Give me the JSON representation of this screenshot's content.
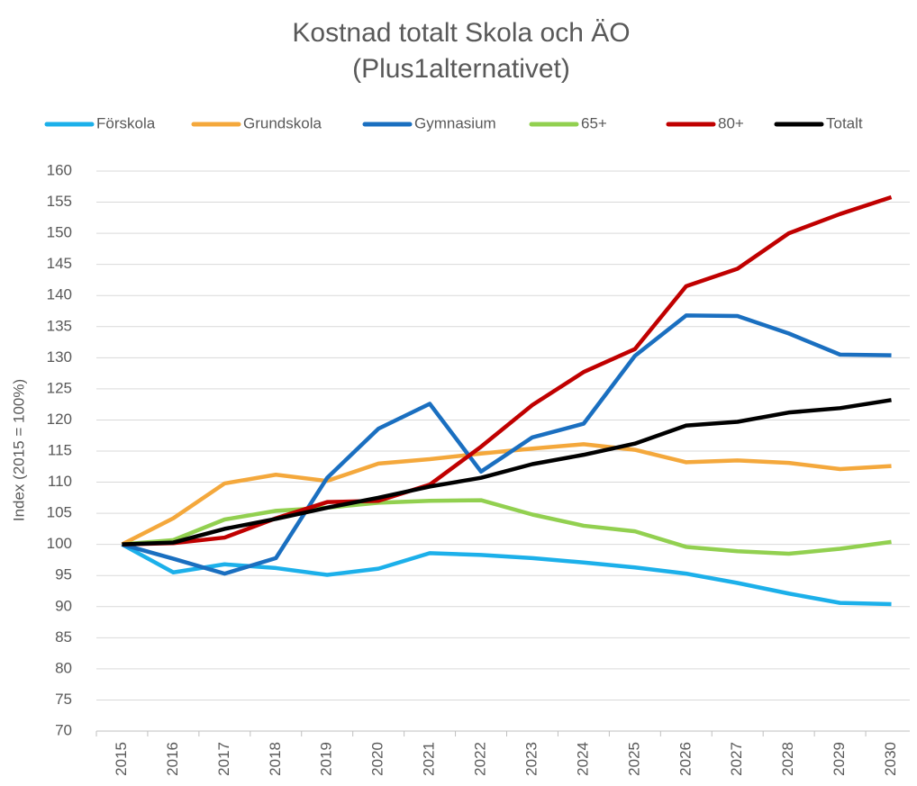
{
  "chart_data": {
    "type": "line",
    "title": [
      "Kostnad totalt Skola och ÄO",
      "(Plus1alternativet)"
    ],
    "ylabel": "Index (2015 = 100%)",
    "categories": [
      "2015",
      "2016",
      "2017",
      "2018",
      "2019",
      "2020",
      "2021",
      "2022",
      "2023",
      "2024",
      "2025",
      "2026",
      "2027",
      "2028",
      "2029",
      "2030"
    ],
    "ylim": [
      70,
      160
    ],
    "yticks": [
      70,
      75,
      80,
      85,
      90,
      95,
      100,
      105,
      110,
      115,
      120,
      125,
      130,
      135,
      140,
      145,
      150,
      155,
      160
    ],
    "grid": true,
    "legend": "top",
    "series": [
      {
        "name": "Förskola",
        "color": "#1cb0ea",
        "values": [
          100,
          95.5,
          96.8,
          96.2,
          95.1,
          96.1,
          98.6,
          98.3,
          97.8,
          97.1,
          96.3,
          95.3,
          93.8,
          92.1,
          90.6,
          90.4
        ]
      },
      {
        "name": "Grundskola",
        "color": "#f4a83c",
        "values": [
          100,
          104.2,
          109.8,
          111.2,
          110.2,
          113,
          113.7,
          114.6,
          115.4,
          116.1,
          115.2,
          113.2,
          113.5,
          113.1,
          112.1,
          112.6
        ]
      },
      {
        "name": "Gymnasium",
        "color": "#1a6fc0",
        "values": [
          100,
          97.7,
          95.3,
          97.8,
          110.7,
          118.6,
          122.6,
          111.7,
          117.2,
          119.4,
          130.3,
          136.8,
          136.7,
          133.9,
          130.5,
          130.4
        ]
      },
      {
        "name": "65+",
        "color": "#92d050",
        "values": [
          100,
          100.7,
          104,
          105.4,
          105.9,
          106.7,
          107,
          107.1,
          104.8,
          103,
          102.1,
          99.6,
          98.9,
          98.5,
          99.3,
          100.4
        ]
      },
      {
        "name": "80+",
        "color": "#c00000",
        "values": [
          100,
          100.2,
          101.1,
          104.2,
          106.8,
          107,
          109.6,
          115.7,
          122.4,
          127.7,
          131.4,
          141.5,
          144.3,
          150,
          153.1,
          155.8
        ]
      },
      {
        "name": "Totalt",
        "color": "#000000",
        "values": [
          100,
          100.3,
          102.5,
          104.1,
          105.9,
          107.5,
          109.3,
          110.7,
          112.9,
          114.4,
          116.2,
          119.1,
          119.7,
          121.2,
          121.9,
          123.2
        ]
      }
    ]
  }
}
